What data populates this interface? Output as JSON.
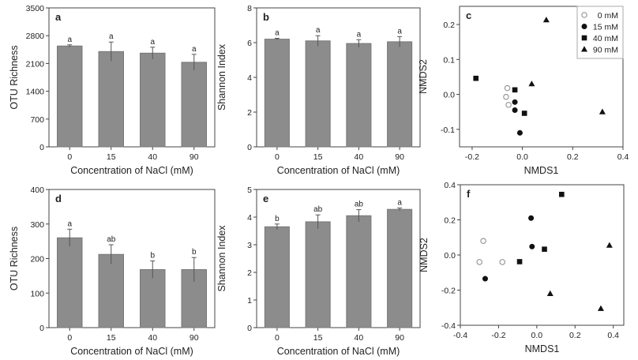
{
  "chart_data": [
    {
      "panel": "a",
      "type": "bar",
      "categories": [
        "0",
        "15",
        "40",
        "90"
      ],
      "values": [
        2540,
        2400,
        2360,
        2130
      ],
      "errors": [
        30,
        240,
        150,
        200
      ],
      "letters": [
        "a",
        "a",
        "a",
        "a"
      ],
      "xlabel": "Concentration of NaCl (mM)",
      "ylabel": "OTU Richness",
      "ylim": [
        0,
        3500
      ],
      "yticks": [
        0,
        700,
        1400,
        2100,
        2800,
        3500
      ]
    },
    {
      "panel": "b",
      "type": "bar",
      "categories": [
        "0",
        "15",
        "40",
        "90"
      ],
      "values": [
        6.2,
        6.1,
        5.95,
        6.05
      ],
      "errors": [
        0.05,
        0.3,
        0.22,
        0.3
      ],
      "letters": [
        "a",
        "a",
        "a",
        "a"
      ],
      "xlabel": "Concentration of NaCl (mM)",
      "ylabel": "Shannon Index",
      "ylim": [
        0,
        8
      ],
      "yticks": [
        0,
        2,
        4,
        6,
        8
      ]
    },
    {
      "panel": "c",
      "type": "scatter",
      "xlabel": "NMDS1",
      "ylabel": "NMDS2",
      "xlim": [
        -0.25,
        0.4
      ],
      "ylim": [
        -0.15,
        0.252
      ],
      "xticks": [
        "-0.2",
        "0.0",
        "0.2",
        "0.4"
      ],
      "yticks": [
        "-0.1",
        "0.0",
        "0.1",
        "0.2"
      ],
      "legend_position": "top-right",
      "series": [
        {
          "name": "0 mM",
          "marker": "open-circle",
          "points": [
            [
              -0.06,
              0.018
            ],
            [
              -0.065,
              -0.007
            ],
            [
              -0.055,
              -0.03
            ]
          ]
        },
        {
          "name": "15 mM",
          "marker": "circle",
          "points": [
            [
              -0.03,
              -0.022
            ],
            [
              -0.03,
              -0.045
            ],
            [
              -0.01,
              -0.11
            ]
          ]
        },
        {
          "name": "40 mM",
          "marker": "square",
          "points": [
            [
              -0.185,
              0.046
            ],
            [
              -0.03,
              0.013
            ],
            [
              0.008,
              -0.054
            ]
          ]
        },
        {
          "name": "90 mM",
          "marker": "triangle",
          "points": [
            [
              0.095,
              0.213
            ],
            [
              0.037,
              0.03
            ],
            [
              0.318,
              -0.05
            ]
          ]
        }
      ]
    },
    {
      "panel": "d",
      "type": "bar",
      "categories": [
        "0",
        "15",
        "40",
        "90"
      ],
      "values": [
        260,
        212,
        168,
        168
      ],
      "errors": [
        25,
        28,
        25,
        35
      ],
      "letters": [
        "a",
        "ab",
        "b",
        "b"
      ],
      "xlabel": "Concentration of NaCl (mM)",
      "ylabel": "OTU Richness",
      "ylim": [
        0,
        400
      ],
      "yticks": [
        0,
        100,
        200,
        300,
        400
      ]
    },
    {
      "panel": "e",
      "type": "bar",
      "categories": [
        "0",
        "15",
        "40",
        "90"
      ],
      "values": [
        3.65,
        3.83,
        4.05,
        4.28
      ],
      "errors": [
        0.1,
        0.25,
        0.22,
        0.05
      ],
      "letters": [
        "b",
        "ab",
        "ab",
        "a"
      ],
      "xlabel": "Concentration of NaCl (mM)",
      "ylabel": "Shannon Index",
      "ylim": [
        0,
        5
      ],
      "yticks": [
        0,
        1,
        2,
        3,
        4,
        5
      ]
    },
    {
      "panel": "f",
      "type": "scatter",
      "xlabel": "NMDS1",
      "ylabel": "NMDS2",
      "xlim": [
        -0.4,
        0.455
      ],
      "ylim": [
        -0.4,
        0.4
      ],
      "xticks": [
        "-0.4",
        "-0.2",
        "0.0",
        "0.2",
        "0.4"
      ],
      "yticks": [
        "-0.4",
        "-0.2",
        "0.0",
        "0.2",
        "0.4"
      ],
      "series": [
        {
          "name": "0 mM",
          "marker": "open-circle",
          "points": [
            [
              -0.28,
              0.08
            ],
            [
              -0.3,
              -0.04
            ],
            [
              -0.18,
              -0.04
            ]
          ]
        },
        {
          "name": "15 mM",
          "marker": "circle",
          "points": [
            [
              -0.03,
              0.21
            ],
            [
              -0.025,
              0.048
            ],
            [
              -0.27,
              -0.135
            ]
          ]
        },
        {
          "name": "40 mM",
          "marker": "square",
          "points": [
            [
              0.13,
              0.345
            ],
            [
              0.04,
              0.033
            ],
            [
              -0.09,
              -0.038
            ]
          ]
        },
        {
          "name": "90 mM",
          "marker": "triangle",
          "points": [
            [
              0.38,
              0.055
            ],
            [
              0.07,
              -0.22
            ],
            [
              0.335,
              -0.305
            ]
          ]
        }
      ]
    }
  ],
  "colors": {
    "bar": "#8c8c8c",
    "axis": "#444444",
    "marker": "#111111",
    "open_marker": "#999999"
  }
}
